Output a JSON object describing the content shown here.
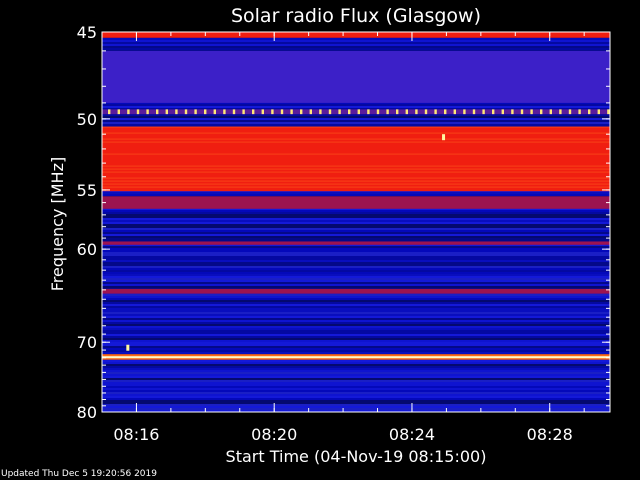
{
  "chart_data": {
    "type": "heatmap",
    "title": "Solar radio Flux (Glasgow)",
    "xlabel": "Start Time (04-Nov-19 08:15:00)",
    "ylabel": "Frequency [MHz]",
    "x_start": "08:15:00",
    "x_end": "08:29:45",
    "x_ticks": [
      "08:16",
      "08:20",
      "08:24",
      "08:28"
    ],
    "x_tick_values": [
      "08:16",
      "08:20",
      "08:24",
      "08:28"
    ],
    "y_ticks": [
      "45",
      "50",
      "55",
      "60",
      "70",
      "80"
    ],
    "y_tick_values": [
      45,
      50,
      55,
      60,
      70,
      80
    ],
    "ylim": [
      45,
      80
    ],
    "y_axis_direction": "downward",
    "y_scale": "reciprocal",
    "colormap": [
      "#000000",
      "#0000aa",
      "#2222ff",
      "#cc0033",
      "#ff2200",
      "#ffff66",
      "#ffffff"
    ],
    "bands": [
      {
        "from": 45.0,
        "to": 45.3,
        "level": "high"
      },
      {
        "from": 46.0,
        "to": 49.0,
        "level": "mid"
      },
      {
        "from": 49.4,
        "to": 49.7,
        "level": "burst",
        "pattern": "periodic dots"
      },
      {
        "from": 50.5,
        "to": 55.1,
        "level": "high"
      },
      {
        "from": 55.5,
        "to": 56.5,
        "level": "mid-high"
      },
      {
        "from": 59.3,
        "to": 59.6,
        "level": "mid-high"
      },
      {
        "from": 63.9,
        "to": 64.4,
        "level": "mid-high"
      },
      {
        "from": 71.8,
        "to": 72.0,
        "level": "burst",
        "pattern": "continuous line"
      }
    ],
    "point_bursts": [
      {
        "time": "08:24:55",
        "frequency": 51.2
      },
      {
        "time": "08:15:45",
        "frequency": 70.7
      }
    ]
  },
  "footer": {
    "updated_text": "Updated Thu Dec  5 19:20:56 2019"
  }
}
